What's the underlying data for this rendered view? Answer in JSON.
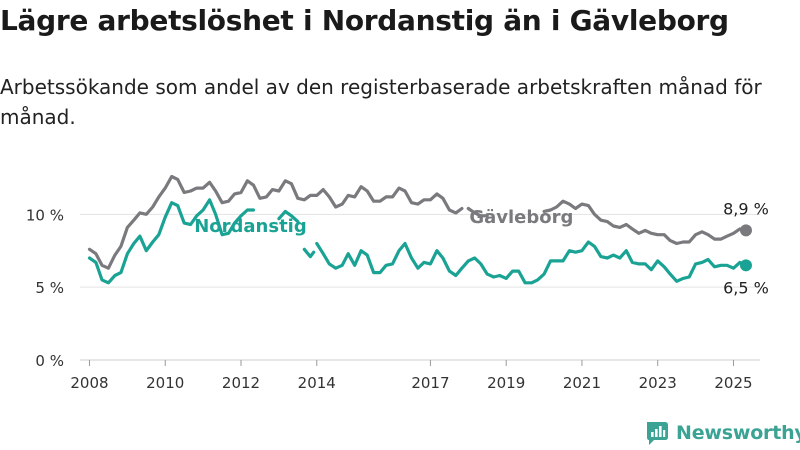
{
  "title": "Lägre arbetslöshet i Nordanstig än i Gävleborg",
  "subtitle": "Arbetssökande som andel av den registerbaserade arbetskraften månad för månad.",
  "brand": {
    "name": "Newsworthy",
    "color": "#3aa394"
  },
  "chart_data": {
    "type": "line",
    "ylim": [
      0,
      12.7
    ],
    "xlim": [
      2007.75,
      2025.7
    ],
    "y_ticks": [
      {
        "value": 0,
        "label": "0 %"
      },
      {
        "value": 5,
        "label": "5 %"
      },
      {
        "value": 10,
        "label": "10 %"
      }
    ],
    "x_ticks": [
      {
        "value": 2008,
        "label": "2008"
      },
      {
        "value": 2010,
        "label": "2010"
      },
      {
        "value": 2012,
        "label": "2012"
      },
      {
        "value": 2014,
        "label": "2014"
      },
      {
        "value": 2017,
        "label": "2017"
      },
      {
        "value": 2019,
        "label": "2019"
      },
      {
        "value": 2021,
        "label": "2021"
      },
      {
        "value": 2023,
        "label": "2023"
      },
      {
        "value": 2025,
        "label": "2025"
      }
    ],
    "grid": "horizontal",
    "series": [
      {
        "name": "Gävleborg",
        "color": "#7a7a7e",
        "end_label": "8,9 %",
        "points": [
          [
            2008.0,
            7.6
          ],
          [
            2008.17,
            7.3
          ],
          [
            2008.33,
            6.5
          ],
          [
            2008.5,
            6.3
          ],
          [
            2008.67,
            7.2
          ],
          [
            2008.83,
            7.8
          ],
          [
            2009.0,
            9.1
          ],
          [
            2009.17,
            9.6
          ],
          [
            2009.33,
            10.1
          ],
          [
            2009.5,
            10.0
          ],
          [
            2009.67,
            10.5
          ],
          [
            2009.83,
            11.2
          ],
          [
            2010.0,
            11.8
          ],
          [
            2010.17,
            12.6
          ],
          [
            2010.33,
            12.4
          ],
          [
            2010.5,
            11.5
          ],
          [
            2010.67,
            11.6
          ],
          [
            2010.83,
            11.8
          ],
          [
            2011.0,
            11.8
          ],
          [
            2011.17,
            12.2
          ],
          [
            2011.33,
            11.6
          ],
          [
            2011.5,
            10.8
          ],
          [
            2011.67,
            10.9
          ],
          [
            2011.83,
            11.4
          ],
          [
            2012.0,
            11.5
          ],
          [
            2012.17,
            12.3
          ],
          [
            2012.33,
            12.0
          ],
          [
            2012.5,
            11.1
          ],
          [
            2012.67,
            11.2
          ],
          [
            2012.83,
            11.7
          ],
          [
            2013.0,
            11.6
          ],
          [
            2013.17,
            12.3
          ],
          [
            2013.33,
            12.1
          ],
          [
            2013.5,
            11.1
          ],
          [
            2013.67,
            11.0
          ],
          [
            2013.83,
            11.3
          ],
          [
            2014.0,
            11.3
          ],
          [
            2014.17,
            11.7
          ],
          [
            2014.33,
            11.2
          ],
          [
            2014.5,
            10.5
          ],
          [
            2014.67,
            10.7
          ],
          [
            2014.83,
            11.3
          ],
          [
            2015.0,
            11.2
          ],
          [
            2015.17,
            11.9
          ],
          [
            2015.33,
            11.6
          ],
          [
            2015.5,
            10.9
          ],
          [
            2015.67,
            10.9
          ],
          [
            2015.83,
            11.2
          ],
          [
            2016.0,
            11.2
          ],
          [
            2016.17,
            11.8
          ],
          [
            2016.33,
            11.6
          ],
          [
            2016.5,
            10.8
          ],
          [
            2016.67,
            10.7
          ],
          [
            2016.83,
            11.0
          ],
          [
            2017.0,
            11.0
          ],
          [
            2017.17,
            11.4
          ],
          [
            2017.33,
            11.1
          ],
          [
            2017.5,
            10.3
          ],
          [
            2017.67,
            10.1
          ],
          [
            2017.83,
            10.4
          ]
        ],
        "segments": [
          [
            [
              2018.0,
              10.4
            ],
            [
              2018.17,
              10.1
            ],
            [
              2018.33,
              9.9
            ],
            [
              2018.5,
              9.9
            ]
          ],
          [
            [
              2020.0,
              10.2
            ],
            [
              2020.17,
              10.3
            ],
            [
              2020.33,
              10.5
            ],
            [
              2020.5,
              10.9
            ],
            [
              2020.67,
              10.7
            ],
            [
              2020.83,
              10.4
            ],
            [
              2021.0,
              10.7
            ],
            [
              2021.17,
              10.6
            ],
            [
              2021.33,
              10.0
            ],
            [
              2021.5,
              9.6
            ],
            [
              2021.67,
              9.5
            ],
            [
              2021.83,
              9.2
            ],
            [
              2022.0,
              9.1
            ],
            [
              2022.17,
              9.3
            ],
            [
              2022.33,
              9.0
            ],
            [
              2022.5,
              8.7
            ],
            [
              2022.67,
              8.9
            ],
            [
              2022.83,
              8.7
            ],
            [
              2023.0,
              8.6
            ],
            [
              2023.17,
              8.6
            ],
            [
              2023.33,
              8.2
            ],
            [
              2023.5,
              8.0
            ],
            [
              2023.67,
              8.1
            ],
            [
              2023.83,
              8.1
            ],
            [
              2024.0,
              8.6
            ],
            [
              2024.17,
              8.8
            ],
            [
              2024.33,
              8.6
            ],
            [
              2024.5,
              8.3
            ],
            [
              2024.67,
              8.3
            ],
            [
              2024.83,
              8.5
            ],
            [
              2025.0,
              8.7
            ],
            [
              2025.17,
              9.0
            ],
            [
              2025.33,
              8.9
            ]
          ]
        ]
      },
      {
        "name": "Nordanstig",
        "color": "#1aa394",
        "end_label": "6,5 %",
        "segments": [
          [
            [
              2008.0,
              7.0
            ],
            [
              2008.17,
              6.7
            ],
            [
              2008.33,
              5.5
            ],
            [
              2008.5,
              5.3
            ],
            [
              2008.67,
              5.8
            ],
            [
              2008.83,
              6.0
            ],
            [
              2009.0,
              7.3
            ],
            [
              2009.17,
              8.0
            ],
            [
              2009.33,
              8.5
            ],
            [
              2009.5,
              7.5
            ],
            [
              2009.67,
              8.1
            ],
            [
              2009.83,
              8.6
            ],
            [
              2010.0,
              9.8
            ],
            [
              2010.17,
              10.8
            ],
            [
              2010.33,
              10.6
            ],
            [
              2010.5,
              9.4
            ],
            [
              2010.67,
              9.3
            ],
            [
              2010.83,
              9.9
            ],
            [
              2011.0,
              10.3
            ],
            [
              2011.17,
              11.0
            ],
            [
              2011.33,
              10.0
            ],
            [
              2011.5,
              8.6
            ],
            [
              2011.67,
              8.7
            ],
            [
              2011.83,
              9.4
            ],
            [
              2012.0,
              9.9
            ],
            [
              2012.17,
              10.3
            ],
            [
              2012.33,
              10.3
            ]
          ],
          [
            [
              2013.0,
              9.7
            ],
            [
              2013.17,
              10.2
            ],
            [
              2013.33,
              9.9
            ],
            [
              2013.5,
              9.5
            ]
          ],
          [
            [
              2013.67,
              7.6
            ],
            [
              2013.83,
              7.1
            ],
            [
              2013.92,
              7.4
            ]
          ],
          [
            [
              2014.0,
              8.0
            ],
            [
              2014.17,
              7.3
            ],
            [
              2014.33,
              6.6
            ],
            [
              2014.5,
              6.3
            ],
            [
              2014.67,
              6.5
            ],
            [
              2014.83,
              7.3
            ],
            [
              2015.0,
              6.5
            ],
            [
              2015.17,
              7.5
            ],
            [
              2015.33,
              7.2
            ],
            [
              2015.5,
              6.0
            ],
            [
              2015.67,
              6.0
            ],
            [
              2015.83,
              6.5
            ],
            [
              2016.0,
              6.6
            ],
            [
              2016.17,
              7.5
            ],
            [
              2016.33,
              8.0
            ],
            [
              2016.5,
              7.0
            ],
            [
              2016.67,
              6.3
            ],
            [
              2016.83,
              6.7
            ],
            [
              2017.0,
              6.6
            ],
            [
              2017.17,
              7.5
            ],
            [
              2017.33,
              7.0
            ],
            [
              2017.5,
              6.1
            ],
            [
              2017.67,
              5.8
            ],
            [
              2017.83,
              6.3
            ],
            [
              2018.0,
              6.8
            ],
            [
              2018.17,
              7.0
            ],
            [
              2018.33,
              6.6
            ],
            [
              2018.5,
              5.9
            ],
            [
              2018.67,
              5.7
            ],
            [
              2018.83,
              5.8
            ],
            [
              2019.0,
              5.6
            ],
            [
              2019.17,
              6.1
            ],
            [
              2019.33,
              6.1
            ],
            [
              2019.5,
              5.3
            ],
            [
              2019.67,
              5.3
            ],
            [
              2019.83,
              5.5
            ],
            [
              2020.0,
              5.9
            ],
            [
              2020.17,
              6.8
            ],
            [
              2020.33,
              6.8
            ],
            [
              2020.5,
              6.8
            ],
            [
              2020.67,
              7.5
            ],
            [
              2020.83,
              7.4
            ],
            [
              2021.0,
              7.5
            ],
            [
              2021.17,
              8.1
            ],
            [
              2021.33,
              7.8
            ],
            [
              2021.5,
              7.1
            ],
            [
              2021.67,
              7.0
            ],
            [
              2021.83,
              7.2
            ],
            [
              2022.0,
              7.0
            ],
            [
              2022.17,
              7.5
            ],
            [
              2022.33,
              6.7
            ],
            [
              2022.5,
              6.6
            ],
            [
              2022.67,
              6.6
            ],
            [
              2022.83,
              6.2
            ],
            [
              2023.0,
              6.8
            ],
            [
              2023.17,
              6.4
            ],
            [
              2023.33,
              5.9
            ],
            [
              2023.5,
              5.4
            ],
            [
              2023.67,
              5.6
            ],
            [
              2023.83,
              5.7
            ],
            [
              2024.0,
              6.6
            ],
            [
              2024.17,
              6.7
            ],
            [
              2024.33,
              6.9
            ],
            [
              2024.5,
              6.4
            ],
            [
              2024.67,
              6.5
            ],
            [
              2024.83,
              6.5
            ],
            [
              2025.0,
              6.3
            ],
            [
              2025.17,
              6.7
            ],
            [
              2025.33,
              6.5
            ]
          ]
        ]
      }
    ],
    "annotations": [
      {
        "text": "Gävleborg",
        "series": "Gävleborg",
        "x": 2019.4,
        "y": 9.4
      },
      {
        "text": "Nordanstig",
        "series": "Nordanstig",
        "x": 2012.25,
        "y": 8.8
      }
    ]
  }
}
